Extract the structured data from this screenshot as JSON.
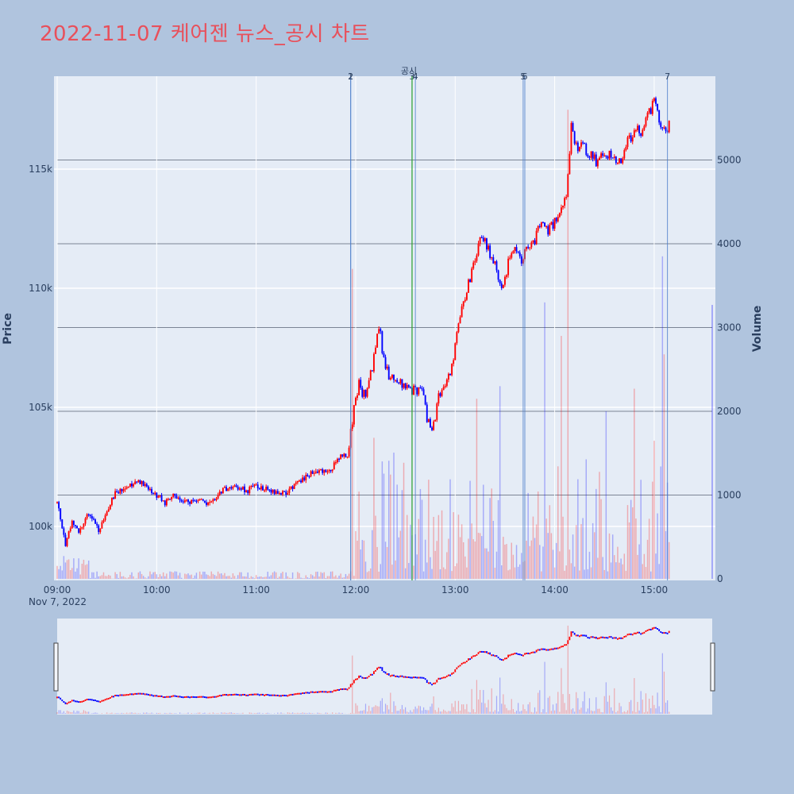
{
  "title": "2022-11-07 케어젠 뉴스_공시 차트",
  "colors": {
    "up": "#ff0000",
    "down": "#0000ff",
    "news_line": "#4a7cc9",
    "disclosure_line": "#2ca02c",
    "title": "#e8505b",
    "page_bg": "#b0c4de",
    "plot_bg": "#e5ecf6"
  },
  "chart_data": {
    "type": "candlestick",
    "xlabel": "",
    "ylabel": "Price",
    "y2label": "Volume",
    "date_label": "Nov 7, 2022",
    "x_range_minutes": [
      540,
      935
    ],
    "price_range": [
      97800,
      118900
    ],
    "volume_range": [
      0,
      6000
    ],
    "x_ticks": [
      {
        "t": 540,
        "label": "09:00"
      },
      {
        "t": 600,
        "label": "10:00"
      },
      {
        "t": 660,
        "label": "11:00"
      },
      {
        "t": 720,
        "label": "12:00"
      },
      {
        "t": 780,
        "label": "13:00"
      },
      {
        "t": 840,
        "label": "14:00"
      },
      {
        "t": 900,
        "label": "15:00"
      }
    ],
    "price_ticks": [
      {
        "v": 100000,
        "label": "100k"
      },
      {
        "v": 105000,
        "label": "105k"
      },
      {
        "v": 110000,
        "label": "110k"
      },
      {
        "v": 115000,
        "label": "115k"
      }
    ],
    "volume_ticks": [
      {
        "v": 0,
        "label": "0"
      },
      {
        "v": 1000,
        "label": "1000"
      },
      {
        "v": 2000,
        "label": "2000"
      },
      {
        "v": 3000,
        "label": "3000"
      },
      {
        "v": 4000,
        "label": "4000"
      },
      {
        "v": 5000,
        "label": "5000"
      }
    ],
    "price_keypoints": [
      [
        540,
        101000
      ],
      [
        545,
        99200
      ],
      [
        549,
        100200
      ],
      [
        553,
        99700
      ],
      [
        558,
        100600
      ],
      [
        562,
        100300
      ],
      [
        565,
        99800
      ],
      [
        570,
        100700
      ],
      [
        575,
        101400
      ],
      [
        580,
        101500
      ],
      [
        585,
        101800
      ],
      [
        590,
        101900
      ],
      [
        595,
        101500
      ],
      [
        600,
        101300
      ],
      [
        605,
        101000
      ],
      [
        610,
        101300
      ],
      [
        615,
        101100
      ],
      [
        620,
        101000
      ],
      [
        625,
        101200
      ],
      [
        630,
        101000
      ],
      [
        635,
        101200
      ],
      [
        640,
        101500
      ],
      [
        645,
        101700
      ],
      [
        650,
        101600
      ],
      [
        655,
        101500
      ],
      [
        660,
        101700
      ],
      [
        665,
        101600
      ],
      [
        670,
        101500
      ],
      [
        675,
        101400
      ],
      [
        680,
        101500
      ],
      [
        685,
        101800
      ],
      [
        690,
        102100
      ],
      [
        695,
        102300
      ],
      [
        700,
        102300
      ],
      [
        705,
        102400
      ],
      [
        710,
        102900
      ],
      [
        715,
        103000
      ],
      [
        718,
        104500
      ],
      [
        722,
        106000
      ],
      [
        725,
        105500
      ],
      [
        728,
        106000
      ],
      [
        731,
        107000
      ],
      [
        734,
        108500
      ],
      [
        737,
        107000
      ],
      [
        740,
        106300
      ],
      [
        745,
        106200
      ],
      [
        750,
        105800
      ],
      [
        755,
        105700
      ],
      [
        760,
        105900
      ],
      [
        763,
        104500
      ],
      [
        766,
        103900
      ],
      [
        770,
        105500
      ],
      [
        773,
        105800
      ],
      [
        777,
        106500
      ],
      [
        780,
        107500
      ],
      [
        783,
        108800
      ],
      [
        786,
        109700
      ],
      [
        789,
        110500
      ],
      [
        792,
        111000
      ],
      [
        795,
        112000
      ],
      [
        799,
        111800
      ],
      [
        803,
        111200
      ],
      [
        806,
        110500
      ],
      [
        809,
        110000
      ],
      [
        812,
        111000
      ],
      [
        816,
        111600
      ],
      [
        820,
        111000
      ],
      [
        824,
        111800
      ],
      [
        828,
        112000
      ],
      [
        832,
        113000
      ],
      [
        836,
        112500
      ],
      [
        840,
        112800
      ],
      [
        844,
        113500
      ],
      [
        847,
        114000
      ],
      [
        850,
        116800
      ],
      [
        854,
        115800
      ],
      [
        857,
        116000
      ],
      [
        862,
        115500
      ],
      [
        866,
        115300
      ],
      [
        870,
        115600
      ],
      [
        875,
        115500
      ],
      [
        880,
        115500
      ],
      [
        885,
        116300
      ],
      [
        890,
        116700
      ],
      [
        893,
        116400
      ],
      [
        896,
        117300
      ],
      [
        900,
        117800
      ],
      [
        903,
        117200
      ],
      [
        906,
        116600
      ],
      [
        909,
        116800
      ]
    ],
    "series_news": [
      {
        "label": "1",
        "t": 717
      },
      {
        "label": "2",
        "t": 717
      },
      {
        "label": "3",
        "t": 754
      },
      {
        "label": "4",
        "t": 756
      },
      {
        "label": "5",
        "t": 821
      },
      {
        "label": "6",
        "t": 822
      },
      {
        "label": "7",
        "t": 908
      }
    ],
    "series_disclosure": [
      {
        "label": "공시",
        "t": 754
      }
    ]
  }
}
